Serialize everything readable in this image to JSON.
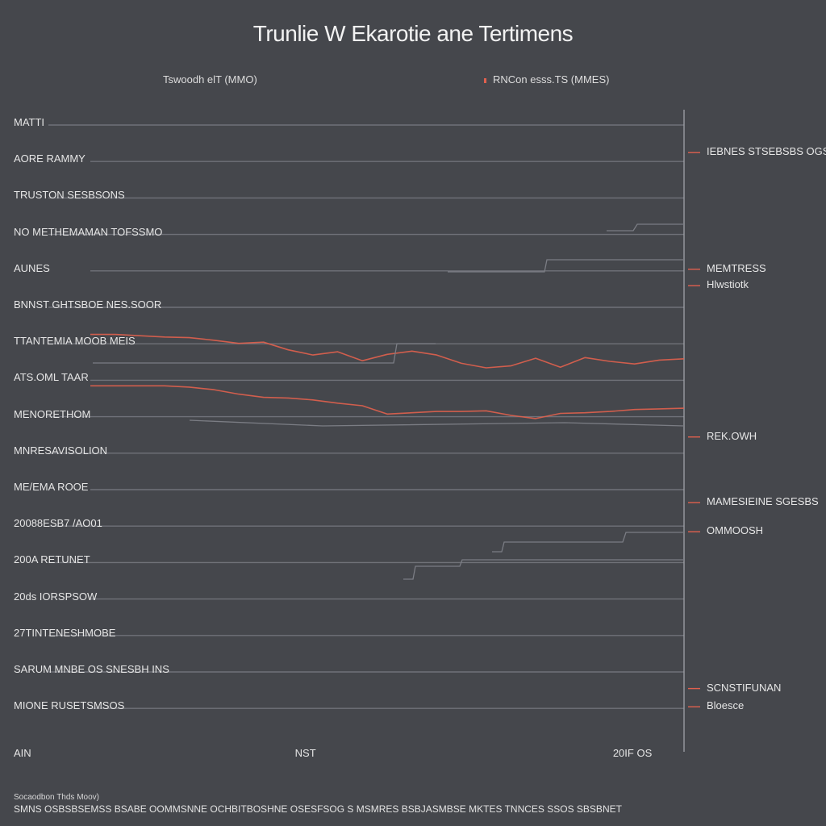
{
  "chart_data": {
    "type": "line",
    "title": "Trunlie W Ekarotie ane Tertimens",
    "legend": {
      "placement": "top",
      "entries": [
        "Tswoodh elT (MMO)",
        "RNCon esss.TS (MMES)"
      ]
    },
    "row_labels": [
      "MATTI",
      "AORE RAMMY",
      "TRUSTON SESBSONS",
      "NO METHEMAMAN TOFSSMO",
      "AUNES",
      "BNNST GHTSBOE NES.SOOR",
      "TTANTEMIA MOOB MEIS",
      "ATS.OML TAAR",
      "MENORETHOM",
      "MNRESAVISOLION",
      "ME/EMA ROOE",
      "20088ESB7 /AO01",
      "200A RETUNET",
      "20ds IORSPSOW",
      "27TINTENESHMOBE",
      "SARUM MNBE OS SNESBH INS",
      "MIONE RUSETSMSOS"
    ],
    "right_labels": [
      "IEBNES STSEBSBS OGS",
      "MEMTRESS",
      "Hlwstiotk",
      "REK.OWH",
      "MAMESIEINE SGESBS",
      "OMMOOSH",
      "SCNSTIFUNAN",
      "Bloesce"
    ],
    "x_ticks": [
      "AIN",
      "NST",
      "20IF OS"
    ],
    "x": [
      0,
      1,
      2,
      3,
      4,
      5,
      6,
      7,
      8,
      9,
      10,
      11,
      12,
      13,
      14,
      15,
      16,
      17,
      18,
      19,
      20,
      21,
      22,
      23,
      24
    ],
    "series": [
      {
        "color": "#e0604e",
        "values": [
          65,
          65,
          64.8,
          64.6,
          64.5,
          64.1,
          63.6,
          63.8,
          62.6,
          61.8,
          62.3,
          60.9,
          61.9,
          62.4,
          61.8,
          60.5,
          59.8,
          60.1,
          61.3,
          59.9,
          61.4,
          60.8,
          60.4,
          61.0,
          61.2
        ]
      },
      {
        "color": "#e0604e",
        "values": [
          57,
          57,
          57,
          57,
          56.8,
          56.4,
          55.7,
          55.2,
          55.1,
          54.8,
          54.3,
          53.9,
          52.6,
          52.8,
          53.0,
          53.0,
          53.1,
          52.4,
          51.9,
          52.7,
          52.8,
          53.0,
          53.3,
          53.4,
          53.5
        ]
      }
    ],
    "y_range": [
      0,
      100
    ],
    "grid": true,
    "source": "Socaodbon Thds Moov)",
    "footnote": "SMNS OSBSBSEMSS BSABE OOMMSNNE OCHBITBOSHNE OSESFSOG S MSMRES BSBJASMBSE MKTES TNNCES SSOS SBSBNET"
  },
  "colors": {
    "background": "#45474c",
    "gridline": "#707279",
    "accent": "#e0604e",
    "text": "#e4e4e4"
  }
}
